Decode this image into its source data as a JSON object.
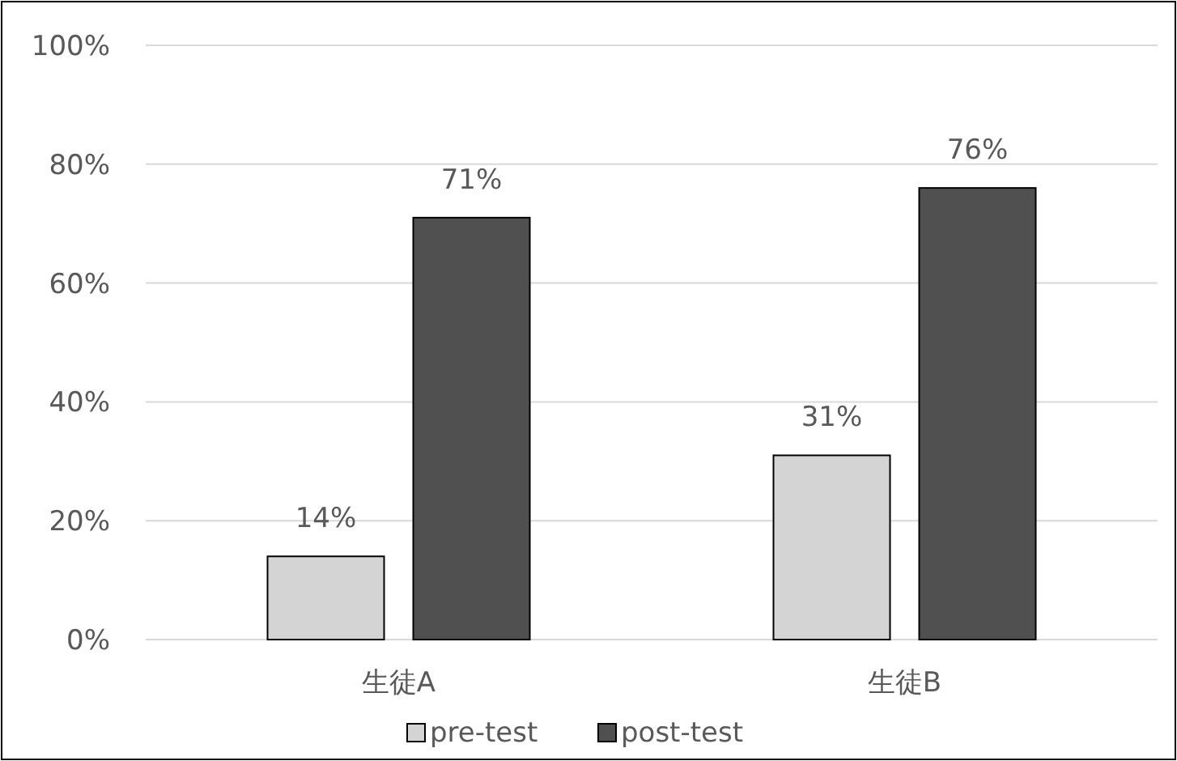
{
  "chart_data": {
    "type": "bar",
    "categories": [
      "生徒A",
      "生徒B"
    ],
    "series": [
      {
        "name": "pre-test",
        "color": "#d4d4d4",
        "values": [
          14,
          31
        ],
        "value_labels": [
          "14%",
          "31%"
        ]
      },
      {
        "name": "post-test",
        "color": "#505050",
        "values": [
          71,
          76
        ],
        "value_labels": [
          "71%",
          "76%"
        ]
      }
    ],
    "ylim": [
      0,
      100
    ],
    "yticks": [
      {
        "value": 0,
        "label": "0%"
      },
      {
        "value": 20,
        "label": "20%"
      },
      {
        "value": 40,
        "label": "40%"
      },
      {
        "value": 60,
        "label": "60%"
      },
      {
        "value": 80,
        "label": "80%"
      },
      {
        "value": 100,
        "label": "100%"
      }
    ],
    "grid": "y",
    "legend": "bottom"
  }
}
